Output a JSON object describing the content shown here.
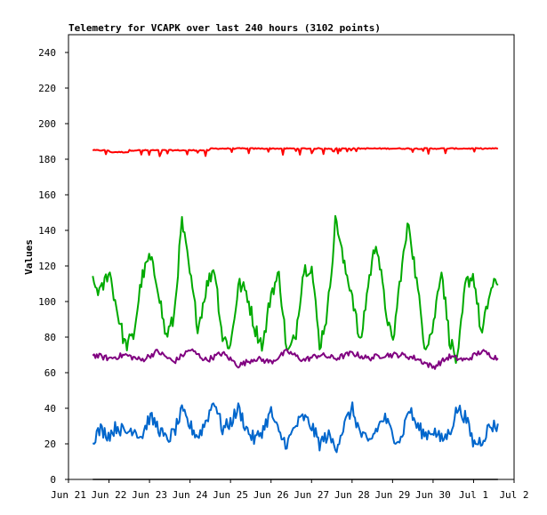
{
  "chart_data": {
    "type": "line",
    "title": "Telemetry for VCAPK over last 240 hours (3102 points)",
    "xlabel": "",
    "ylabel": "Values",
    "ylim": [
      0,
      250
    ],
    "y_ticks": [
      0,
      20,
      40,
      60,
      80,
      100,
      120,
      140,
      160,
      180,
      200,
      220,
      240
    ],
    "x_tick_labels": [
      "Jun 21",
      "Jun 22",
      "Jun 23",
      "Jun 24",
      "Jun 25",
      "Jun 26",
      "Jun 27",
      "Jun 28",
      "Jun 29",
      "Jun 30",
      "Jul 1",
      "Jul 2"
    ],
    "x_range_days": [
      0,
      11
    ],
    "data_x_range_days": [
      0.6,
      10.6
    ],
    "grid": false,
    "legend": "none",
    "series": [
      {
        "color": "#ff0000",
        "x_days": [
          0.6,
          1.0,
          1.5,
          2.0,
          2.5,
          3.0,
          3.5,
          4.0,
          4.5,
          5.0,
          5.5,
          6.0,
          6.5,
          7.0,
          7.5,
          8.0,
          8.5,
          9.0,
          9.5,
          10.0,
          10.6
        ],
        "values": [
          185,
          184,
          185,
          185,
          185,
          185,
          186,
          186,
          186,
          186,
          186,
          186,
          186,
          186,
          186,
          186,
          186,
          186,
          186,
          186,
          186
        ]
      },
      {
        "color": "#00aa00",
        "x_days": [
          0.6,
          0.8,
          1.0,
          1.2,
          1.4,
          1.6,
          1.8,
          2.0,
          2.2,
          2.4,
          2.6,
          2.8,
          3.0,
          3.2,
          3.4,
          3.6,
          3.8,
          4.0,
          4.2,
          4.4,
          4.6,
          4.8,
          5.0,
          5.2,
          5.4,
          5.6,
          5.8,
          6.0,
          6.2,
          6.4,
          6.6,
          6.8,
          7.0,
          7.2,
          7.4,
          7.6,
          7.8,
          8.0,
          8.2,
          8.4,
          8.6,
          8.8,
          9.0,
          9.2,
          9.4,
          9.6,
          9.8,
          10.0,
          10.2,
          10.4,
          10.6
        ],
        "values": [
          110,
          105,
          118,
          95,
          75,
          80,
          112,
          125,
          110,
          80,
          90,
          145,
          115,
          85,
          108,
          120,
          80,
          75,
          110,
          105,
          85,
          75,
          105,
          115,
          70,
          80,
          118,
          120,
          75,
          95,
          148,
          120,
          105,
          75,
          110,
          135,
          100,
          75,
          115,
          145,
          110,
          75,
          85,
          120,
          80,
          65,
          110,
          115,
          80,
          105,
          112
        ]
      },
      {
        "color": "#800080",
        "x_days": [
          0.6,
          1.0,
          1.4,
          1.8,
          2.2,
          2.6,
          3.0,
          3.4,
          3.8,
          4.2,
          4.6,
          5.0,
          5.4,
          5.8,
          6.2,
          6.6,
          7.0,
          7.4,
          7.8,
          8.2,
          8.6,
          9.0,
          9.4,
          9.8,
          10.2,
          10.6
        ],
        "values": [
          70,
          68,
          70,
          67,
          72,
          66,
          73,
          67,
          71,
          64,
          68,
          66,
          72,
          67,
          70,
          68,
          71,
          68,
          70,
          70,
          68,
          63,
          69,
          67,
          72,
          68
        ]
      },
      {
        "color": "#0066cc",
        "x_days": [
          0.6,
          0.8,
          1.0,
          1.2,
          1.4,
          1.6,
          1.8,
          2.0,
          2.2,
          2.4,
          2.6,
          2.8,
          3.0,
          3.2,
          3.4,
          3.6,
          3.8,
          4.0,
          4.2,
          4.4,
          4.6,
          4.8,
          5.0,
          5.2,
          5.4,
          5.6,
          5.8,
          6.0,
          6.2,
          6.4,
          6.6,
          6.8,
          7.0,
          7.2,
          7.4,
          7.6,
          7.8,
          8.0,
          8.2,
          8.4,
          8.6,
          8.8,
          9.0,
          9.2,
          9.4,
          9.6,
          9.8,
          10.0,
          10.2,
          10.4,
          10.6
        ],
        "values": [
          23,
          28,
          25,
          30,
          26,
          29,
          24,
          35,
          30,
          22,
          26,
          38,
          30,
          24,
          33,
          45,
          28,
          32,
          40,
          28,
          22,
          28,
          38,
          25,
          20,
          30,
          35,
          30,
          20,
          25,
          18,
          30,
          40,
          26,
          20,
          28,
          35,
          25,
          22,
          40,
          30,
          25,
          28,
          22,
          26,
          40,
          35,
          20,
          22,
          30,
          30
        ]
      },
      {
        "color": "#000000",
        "x_days": [
          0.6,
          10.6
        ],
        "values": [
          0,
          0
        ]
      }
    ]
  }
}
